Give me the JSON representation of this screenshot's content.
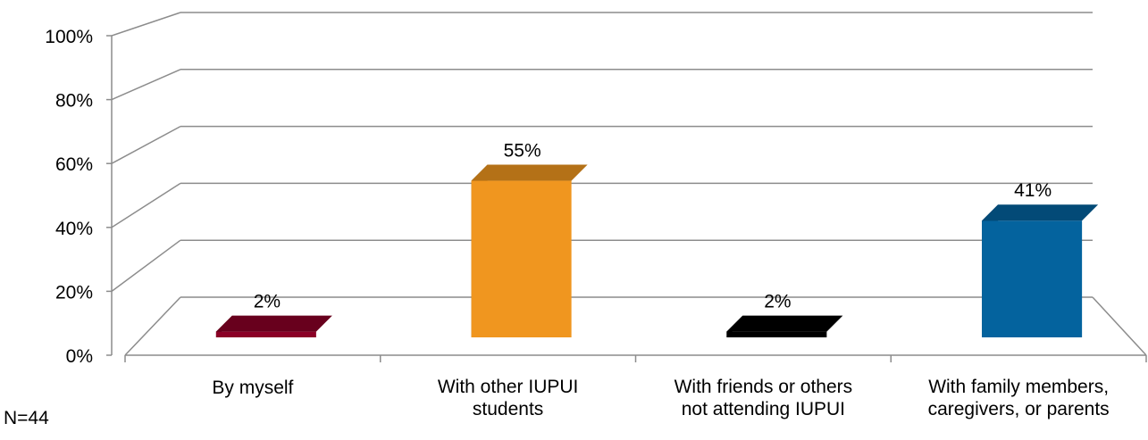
{
  "chart_data": {
    "type": "bar",
    "style": "3d-column",
    "categories": [
      [
        "By myself"
      ],
      [
        "With other IUPUI",
        "students"
      ],
      [
        "With friends or others",
        "not attending IUPUI"
      ],
      [
        "With family members,",
        "caregivers, or parents"
      ]
    ],
    "values": [
      2,
      55,
      2,
      41
    ],
    "data_labels": [
      "2%",
      "55%",
      "2%",
      "41%"
    ],
    "colors": [
      "#8B0026",
      "#F0961F",
      "#000000",
      "#04639E"
    ],
    "y_ticks": [
      "0%",
      "20%",
      "40%",
      "60%",
      "80%",
      "100%"
    ],
    "ylim": [
      0,
      100
    ],
    "grid": true,
    "legend": "none"
  },
  "footnote": "N=44"
}
